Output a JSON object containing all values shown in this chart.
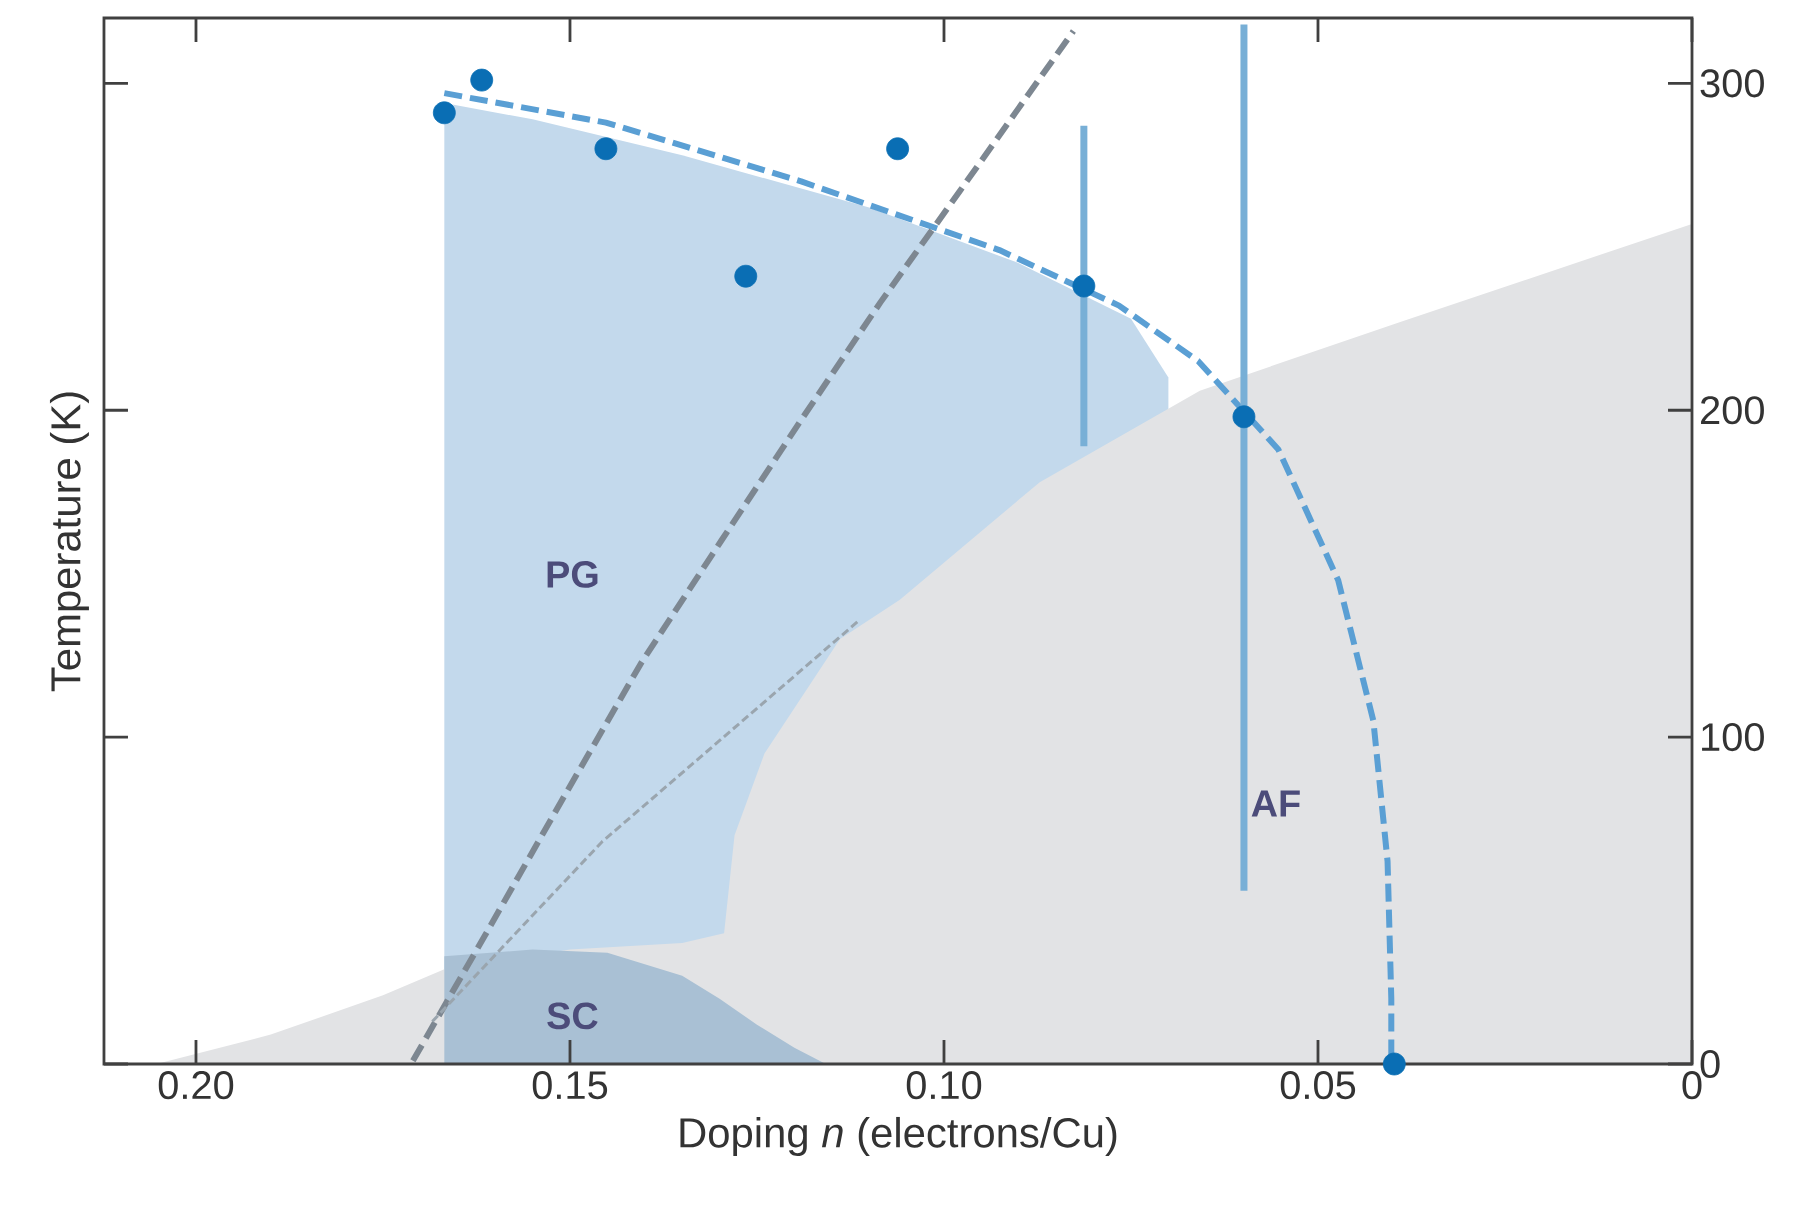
{
  "chart_data": {
    "type": "line",
    "xlabel": "Doping *n* (electrons/Cu)",
    "ylabel": "Temperature (K)",
    "xlim": [
      0.2123,
      0
    ],
    "ylim": [
      0,
      320
    ],
    "xticks": [
      {
        "value": 0.2,
        "label": "0.20"
      },
      {
        "value": 0.15,
        "label": "0.15"
      },
      {
        "value": 0.1,
        "label": "0.10"
      },
      {
        "value": 0.05,
        "label": "0.05"
      },
      0
    ],
    "yticks": [
      0,
      100,
      200,
      300
    ],
    "grid": false,
    "series": [
      {
        "type": "area",
        "color": "#c3d9ec",
        "x": [
          0.1668,
          0.1668,
          0.155,
          0.135,
          0.11,
          0.09,
          0.075,
          0.07
        ],
        "values": [
          0,
          294,
          289,
          278,
          262,
          245,
          228,
          210
        ]
      },
      {
        "type": "area",
        "color": "#e2e3e5",
        "x": [
          0.2053,
          0.19,
          0.175,
          0.1668,
          0.15,
          0.135,
          0.1294,
          0.128,
          0.124,
          0.1139,
          0.1059,
          0.0872,
          0.0658,
          0.039,
          0
        ],
        "values": [
          0,
          9,
          21,
          29,
          35,
          37,
          40,
          70,
          95,
          130,
          142,
          178,
          206,
          227,
          257
        ]
      },
      {
        "type": "area",
        "color": "#a9c0d4",
        "x": [
          0.1668,
          0.1668,
          0.155,
          0.145,
          0.135,
          0.13,
          0.125,
          0.12,
          0.1158
        ],
        "values": [
          0,
          33,
          35,
          34,
          27,
          20,
          12,
          5,
          0
        ]
      },
      {
        "color": "#5a9fd4",
        "line_style": "dashed",
        "marker": "none",
        "x": [
          0.1668,
          0.1452,
          0.1191,
          0.0926,
          0.0766,
          0.066,
          0.0553,
          0.0473,
          0.0426,
          0.0407,
          0.0402,
          0.0402
        ],
        "values": [
          297,
          288,
          270,
          249,
          232,
          215,
          188,
          148,
          105,
          62,
          20,
          0
        ]
      },
      {
        "color": "#7d8791",
        "line_style": "dashed",
        "marker": "none",
        "x": [
          0.171,
          0.1617,
          0.151,
          0.1404,
          0.1298,
          0.1191,
          0.1085,
          0.0979,
          0.0827
        ],
        "values": [
          1,
          38,
          81,
          123,
          160,
          197,
          233,
          267,
          316
        ]
      },
      {
        "color": "#9aa5ae",
        "line_style": "dotted",
        "marker": "none",
        "x": [
          0.1684,
          0.1457,
          0.1112
        ],
        "values": [
          13,
          68,
          136
        ]
      },
      {
        "type": "scatter",
        "color": "#0a6eb4",
        "marker": "circle",
        "x": [
          0.1668,
          0.1618,
          0.1452,
          0.1265,
          0.1062,
          0.0813,
          0.0599,
          0.0398
        ],
        "values": [
          291,
          301,
          280,
          241,
          280,
          238,
          198,
          0
        ],
        "errors": [
          null,
          null,
          null,
          null,
          null,
          [
            189,
            287
          ],
          [
            53,
            318
          ],
          null
        ]
      }
    ],
    "annotations": [
      "PG",
      "SC",
      "AF"
    ]
  }
}
